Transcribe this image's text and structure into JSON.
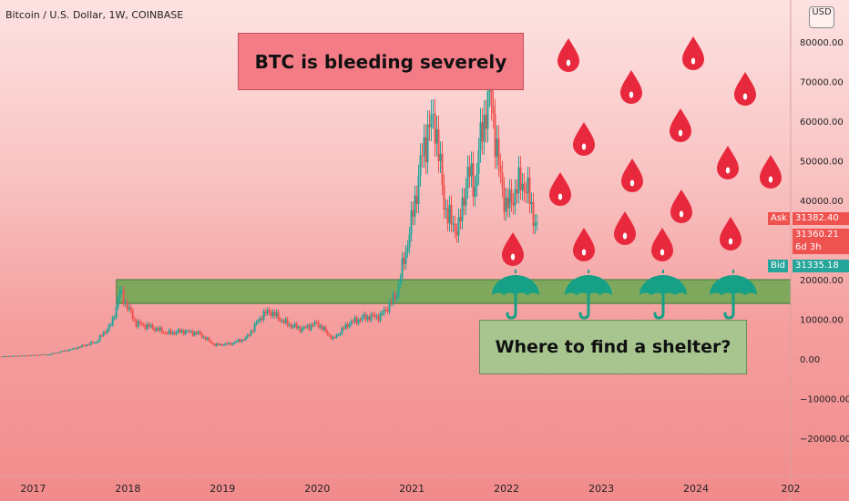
{
  "header": {
    "symbol_label": "Bitcoin / U.S. Dollar, 1W, COINBASE",
    "currency_button": "USD"
  },
  "annotations": {
    "bleeding": "BTC is bleeding severely",
    "shelter": "Where to find a shelter?"
  },
  "price_tags": {
    "ask_label": "Ask",
    "ask_value": "31382.40",
    "last_value": "31360.21",
    "countdown": "6d 3h",
    "bid_label": "Bid",
    "bid_value": "31335.18"
  },
  "colors": {
    "up": "#26a69a",
    "down": "#ef5350",
    "zone": "#6aa84f",
    "drop": "#e8293d",
    "umbrella": "#16a085",
    "ask_tag": "#ef5350",
    "bid_tag": "#26a69a"
  },
  "chart_data": {
    "type": "candlestick",
    "title": "Bitcoin / U.S. Dollar, 1W, COINBASE",
    "x_ticks": [
      "2017",
      "2018",
      "2019",
      "2020",
      "2021",
      "2022",
      "2023",
      "2024",
      "202"
    ],
    "y_ticks": [
      "80000.00",
      "70000.00",
      "60000.00",
      "50000.00",
      "40000.00",
      "30000.00",
      "20000.00",
      "10000.00",
      "0.00",
      "−10000.00",
      "−20000.00"
    ],
    "ylim": [
      -25000,
      90000
    ],
    "support_zone": [
      14000,
      20000
    ],
    "series": [
      {
        "points": [
          [
            "2016-09",
            620
          ],
          [
            "2016-12",
            850
          ],
          [
            "2017-03",
            1100
          ],
          [
            "2017-06",
            2500
          ],
          [
            "2017-09",
            4300
          ],
          [
            "2017-11",
            9000
          ],
          [
            "2017-12",
            17000
          ],
          [
            "2018-01",
            13000
          ],
          [
            "2018-02",
            9000
          ],
          [
            "2018-04",
            8000
          ],
          [
            "2018-06",
            6500
          ],
          [
            "2018-08",
            7000
          ],
          [
            "2018-10",
            6400
          ],
          [
            "2018-12",
            3500
          ],
          [
            "2019-02",
            3800
          ],
          [
            "2019-04",
            5200
          ],
          [
            "2019-06",
            11000
          ],
          [
            "2019-07",
            12000
          ],
          [
            "2019-09",
            9000
          ],
          [
            "2019-11",
            7500
          ],
          [
            "2020-01",
            9000
          ],
          [
            "2020-03",
            5000
          ],
          [
            "2020-05",
            9000
          ],
          [
            "2020-07",
            10500
          ],
          [
            "2020-09",
            10800
          ],
          [
            "2020-11",
            16000
          ],
          [
            "2020-12",
            25000
          ],
          [
            "2021-01",
            35000
          ],
          [
            "2021-02",
            48000
          ],
          [
            "2021-03",
            58000
          ],
          [
            "2021-04",
            60000
          ],
          [
            "2021-05",
            40000
          ],
          [
            "2021-06",
            34000
          ],
          [
            "2021-07",
            33000
          ],
          [
            "2021-08",
            47000
          ],
          [
            "2021-09",
            44000
          ],
          [
            "2021-10",
            60000
          ],
          [
            "2021-11",
            67000
          ],
          [
            "2021-12",
            48000
          ],
          [
            "2022-01",
            38000
          ],
          [
            "2022-02",
            42000
          ],
          [
            "2022-03",
            45000
          ],
          [
            "2022-04",
            40000
          ],
          [
            "2022-05",
            31000
          ]
        ]
      }
    ]
  }
}
